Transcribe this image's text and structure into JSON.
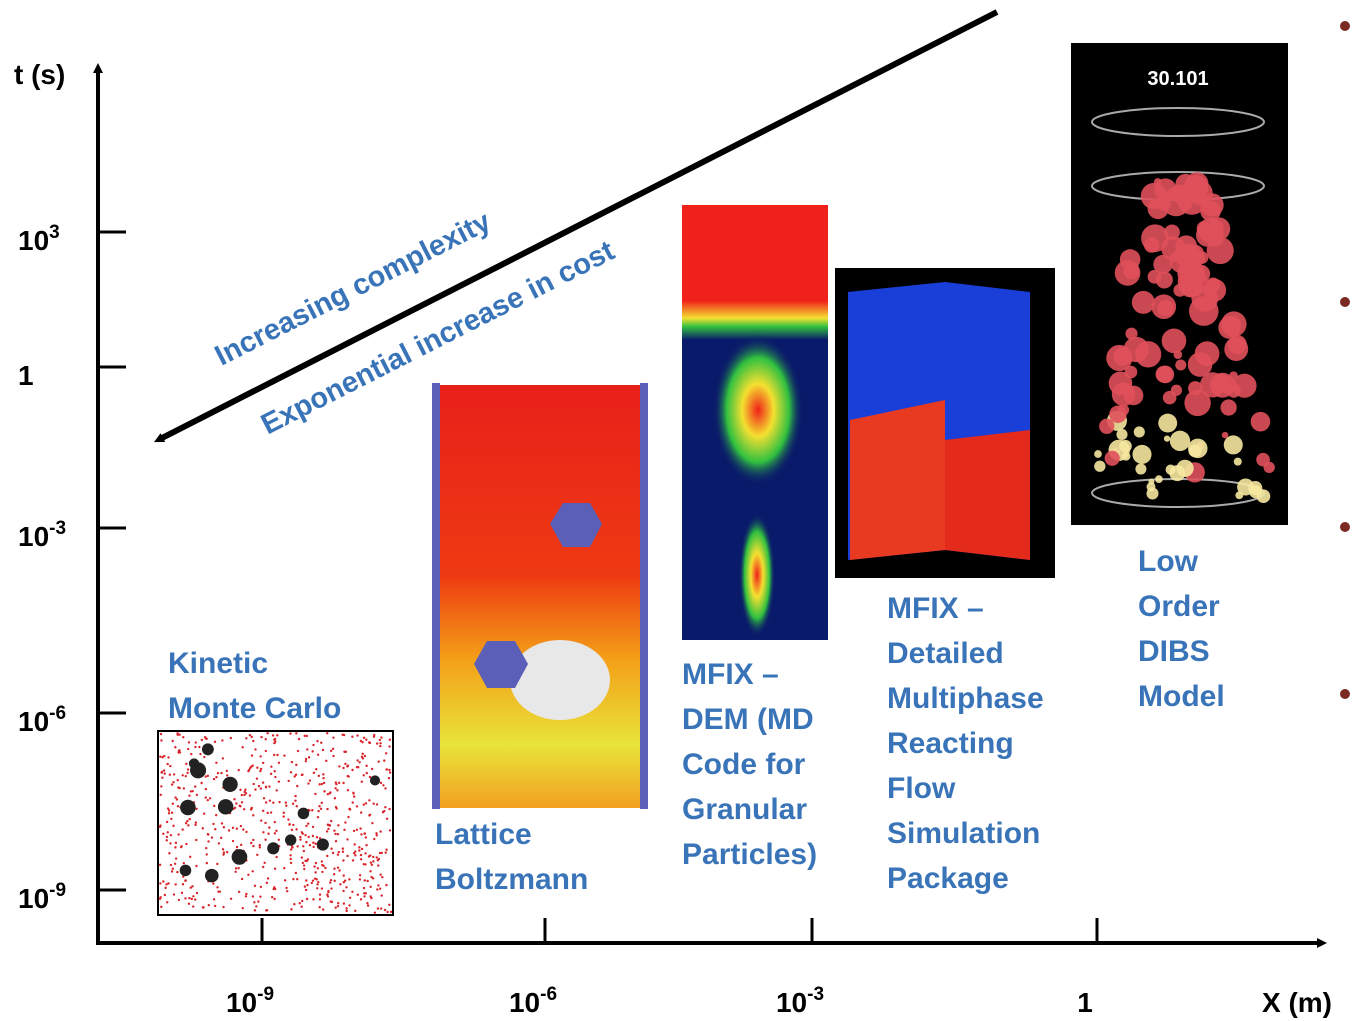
{
  "y_axis": {
    "label": "t (s)",
    "ticks": [
      {
        "base": "10",
        "exp": "3"
      },
      {
        "base": "1"
      },
      {
        "base": "10",
        "exp": "-3"
      },
      {
        "base": "10",
        "exp": "-6"
      },
      {
        "base": "10",
        "exp": "-9"
      }
    ]
  },
  "x_axis": {
    "label": "X (m)",
    "ticks": [
      {
        "base": "10",
        "exp": "-9"
      },
      {
        "base": "10",
        "exp": "-6"
      },
      {
        "base": "10",
        "exp": "-3"
      },
      {
        "base": "1"
      }
    ]
  },
  "arrow": {
    "lines": [
      "Increasing complexity",
      "Exponential increase in cost"
    ]
  },
  "methods": [
    {
      "label_lines": [
        "Kinetic",
        "Monte Carlo"
      ]
    },
    {
      "label_lines": [
        "Lattice",
        "Boltzmann"
      ]
    },
    {
      "label_lines": [
        "MFIX –",
        "DEM (MD",
        "Code for",
        "Granular",
        "Particles)"
      ]
    },
    {
      "label_lines": [
        "MFIX –",
        "Detailed",
        "Multiphase",
        "Reacting",
        "Flow",
        "Simulation",
        "Package"
      ]
    },
    {
      "label_lines": [
        "Low",
        "Order",
        "DIBS",
        "Model"
      ]
    }
  ],
  "simulation_time": "30.101"
}
